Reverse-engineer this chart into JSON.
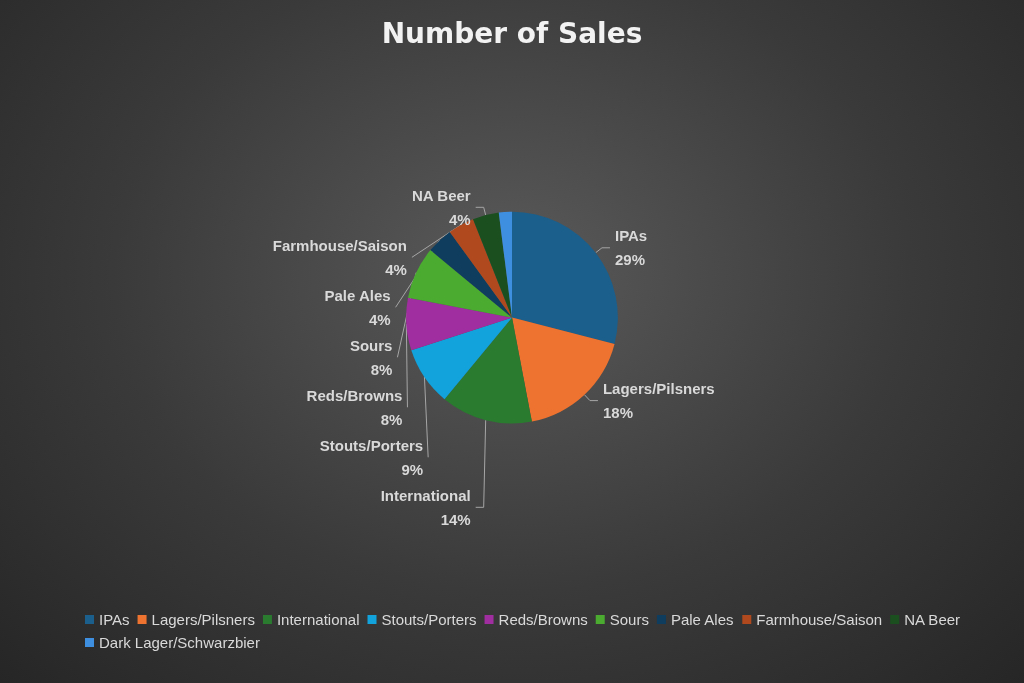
{
  "chart_data": {
    "type": "pie",
    "title": "Number of Sales",
    "categories": [
      "IPAs",
      "Lagers/Pilsners",
      "International",
      "Stouts/Porters",
      "Reds/Browns",
      "Sours",
      "Pale Ales",
      "Farmhouse/Saison",
      "NA Beer",
      "Dark Lager/Schwarzbier"
    ],
    "values": [
      29,
      18,
      14,
      9,
      8,
      8,
      4,
      4,
      4,
      2
    ],
    "value_labels": [
      "29%",
      "18%",
      "14%",
      "9%",
      "8%",
      "8%",
      "4%",
      "4%",
      "4%",
      null
    ],
    "colors": [
      "#1b5f8c",
      "#ee7330",
      "#2a7a30",
      "#12a3dc",
      "#a02ea0",
      "#4aab30",
      "#0e3d5e",
      "#b04a1e",
      "#1b4f20",
      "#3f8fe0"
    ],
    "legend": "bottom"
  }
}
